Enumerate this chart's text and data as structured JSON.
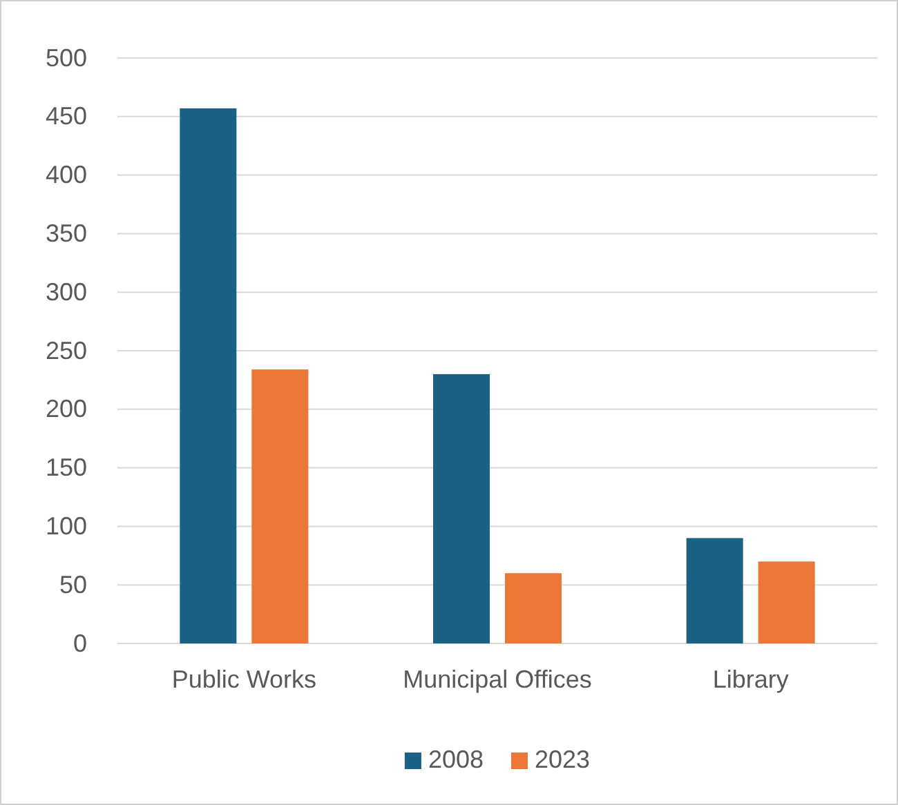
{
  "chart_data": {
    "type": "bar",
    "categories": [
      "Public Works",
      "Municipal Offices",
      "Library"
    ],
    "series": [
      {
        "name": "2008",
        "color": "#1b6183",
        "values": [
          457,
          230,
          90
        ]
      },
      {
        "name": "2023",
        "color": "#ea7637",
        "values": [
          234,
          60,
          70
        ]
      }
    ],
    "ylim": [
      0,
      500
    ],
    "yticks": [
      0,
      50,
      100,
      150,
      200,
      250,
      300,
      350,
      400,
      450,
      500
    ],
    "grid": "y",
    "legend": "bottom"
  }
}
